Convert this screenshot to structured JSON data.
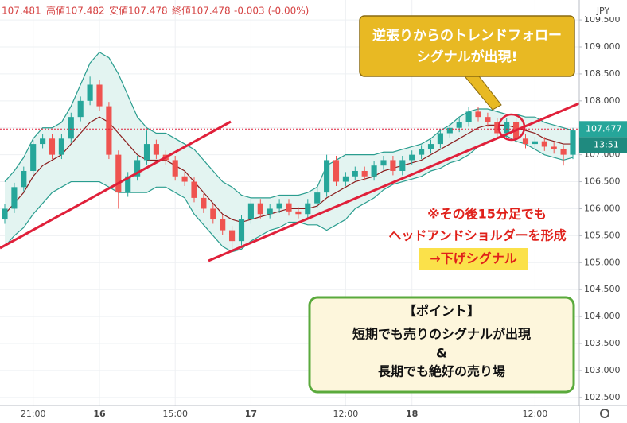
{
  "header": {
    "open": "107.481",
    "high": "高値107.482",
    "low": "安値107.478",
    "close": "終値107.478",
    "change": "-0.003 (-0.00%)"
  },
  "chart_data": {
    "type": "candlestick",
    "currency": "JPY",
    "x": [
      null,
      null,
      null,
      "21:00",
      null,
      null,
      null,
      null,
      null,
      null,
      "16",
      null,
      null,
      null,
      null,
      null,
      null,
      null,
      "15:00",
      null,
      null,
      null,
      null,
      null,
      null,
      null,
      "17",
      null,
      null,
      null,
      null,
      null,
      null,
      null,
      null,
      null,
      "12:00",
      null,
      null,
      null,
      null,
      null,
      null,
      "18",
      null,
      null,
      null,
      null,
      null,
      null,
      null,
      null,
      null,
      null,
      null,
      null,
      "12:00",
      null,
      null,
      null,
      null
    ],
    "open": [
      105.8,
      106.0,
      106.4,
      106.7,
      107.2,
      107.3,
      107.0,
      107.3,
      107.7,
      108.0,
      108.3,
      107.9,
      107.0,
      106.3,
      106.6,
      106.9,
      107.2,
      107.0,
      106.9,
      106.6,
      106.5,
      106.2,
      106.0,
      105.8,
      105.6,
      105.4,
      105.8,
      106.1,
      105.9,
      106.0,
      106.1,
      105.95,
      105.9,
      106.1,
      106.3,
      106.9,
      106.5,
      106.6,
      106.7,
      106.6,
      106.8,
      106.9,
      106.7,
      106.9,
      107.0,
      107.1,
      107.2,
      107.4,
      107.5,
      107.6,
      107.8,
      107.7,
      107.6,
      107.4,
      107.6,
      107.3,
      107.2,
      107.25,
      107.15,
      107.1,
      107.0
    ],
    "high": [
      106.08,
      106.48,
      106.78,
      107.28,
      107.38,
      107.38,
      107.38,
      107.78,
      108.08,
      108.45,
      108.38,
      107.98,
      107.08,
      106.68,
      106.98,
      107.45,
      107.28,
      107.08,
      106.98,
      106.68,
      106.58,
      106.28,
      106.08,
      105.88,
      105.68,
      105.88,
      106.18,
      106.18,
      106.08,
      106.18,
      106.18,
      106.03,
      106.18,
      106.38,
      107.0,
      106.98,
      106.68,
      106.78,
      106.78,
      106.88,
      106.98,
      106.98,
      106.98,
      107.08,
      107.18,
      107.28,
      107.48,
      107.58,
      107.68,
      107.88,
      107.88,
      107.78,
      107.68,
      107.68,
      107.68,
      107.38,
      107.33,
      107.33,
      107.23,
      107.18,
      107.5
    ],
    "low": [
      105.72,
      105.92,
      106.32,
      106.62,
      107.12,
      106.92,
      106.92,
      107.22,
      107.62,
      107.92,
      107.82,
      106.92,
      106.0,
      106.22,
      106.52,
      106.82,
      106.92,
      106.82,
      106.52,
      106.42,
      106.12,
      105.92,
      105.72,
      105.52,
      105.25,
      105.32,
      105.72,
      105.82,
      105.82,
      105.92,
      105.87,
      105.82,
      105.82,
      106.02,
      106.22,
      106.42,
      106.42,
      106.52,
      106.52,
      106.52,
      106.72,
      106.62,
      106.62,
      106.82,
      106.92,
      107.02,
      107.12,
      107.32,
      107.42,
      107.52,
      107.62,
      107.52,
      107.32,
      107.32,
      107.22,
      107.12,
      107.12,
      107.07,
      107.02,
      106.8,
      106.92
    ],
    "close": [
      106.0,
      106.4,
      106.7,
      107.2,
      107.3,
      107.0,
      107.3,
      107.7,
      108.0,
      108.3,
      107.9,
      107.0,
      106.3,
      106.6,
      106.9,
      107.2,
      107.0,
      106.9,
      106.6,
      106.5,
      106.2,
      106.0,
      105.8,
      105.6,
      105.4,
      105.8,
      106.1,
      105.9,
      106.0,
      106.1,
      105.95,
      105.9,
      106.1,
      106.3,
      106.9,
      106.5,
      106.6,
      106.7,
      106.6,
      106.8,
      106.9,
      106.7,
      106.9,
      107.0,
      107.1,
      107.2,
      107.4,
      107.5,
      107.6,
      107.8,
      107.7,
      107.6,
      107.4,
      107.6,
      107.3,
      107.2,
      107.25,
      107.15,
      107.1,
      107.0,
      107.45
    ],
    "up_color": "#26a69a",
    "down_color": "#ef5350",
    "bands": {
      "color": "#2a9d8f",
      "fill": "#e3f4f1",
      "upper": [
        106.5,
        106.7,
        106.95,
        107.3,
        107.5,
        107.5,
        107.6,
        107.9,
        108.3,
        108.7,
        108.9,
        108.8,
        108.5,
        108.1,
        107.7,
        107.5,
        107.4,
        107.4,
        107.3,
        107.2,
        107.1,
        106.9,
        106.7,
        106.5,
        106.4,
        106.25,
        106.2,
        106.2,
        106.2,
        106.25,
        106.25,
        106.25,
        106.3,
        106.4,
        106.8,
        106.9,
        107.0,
        107.0,
        107.0,
        107.0,
        107.05,
        107.05,
        107.1,
        107.15,
        107.2,
        107.3,
        107.45,
        107.55,
        107.7,
        107.8,
        107.85,
        107.85,
        107.8,
        107.75,
        107.75,
        107.7,
        107.7,
        107.6,
        107.55,
        107.5,
        107.45
      ],
      "middle": [
        105.9,
        106.1,
        106.3,
        106.6,
        106.8,
        106.9,
        107.0,
        107.2,
        107.4,
        107.6,
        107.7,
        107.6,
        107.4,
        107.2,
        107.0,
        106.9,
        106.9,
        106.9,
        106.8,
        106.7,
        106.5,
        106.3,
        106.1,
        105.9,
        105.8,
        105.75,
        105.8,
        105.85,
        105.9,
        105.95,
        106.0,
        106.0,
        106.0,
        106.05,
        106.2,
        106.3,
        106.4,
        106.5,
        106.55,
        106.6,
        106.7,
        106.75,
        106.8,
        106.85,
        106.9,
        107.0,
        107.1,
        107.2,
        107.3,
        107.4,
        107.5,
        107.55,
        107.55,
        107.55,
        107.5,
        107.45,
        107.4,
        107.3,
        107.25,
        107.2,
        107.2
      ],
      "lower": [
        105.3,
        105.5,
        105.65,
        105.9,
        106.1,
        106.3,
        106.4,
        106.5,
        106.5,
        106.5,
        106.5,
        106.4,
        106.3,
        106.3,
        106.3,
        106.3,
        106.4,
        106.4,
        106.3,
        106.2,
        105.9,
        105.7,
        105.5,
        105.3,
        105.2,
        105.25,
        105.4,
        105.5,
        105.6,
        105.65,
        105.75,
        105.75,
        105.7,
        105.7,
        105.6,
        105.7,
        105.8,
        106.0,
        106.1,
        106.2,
        106.35,
        106.45,
        106.5,
        106.55,
        106.6,
        106.7,
        106.75,
        106.85,
        106.9,
        107.0,
        107.15,
        107.25,
        107.3,
        107.35,
        107.25,
        107.2,
        107.1,
        107.0,
        106.95,
        106.9,
        106.95
      ],
      "middle_color": "#8b1e1e"
    },
    "ylim": [
      102.35,
      109.87
    ],
    "yticks": [
      {
        "value": 102.5,
        "label": "102.500"
      },
      {
        "value": 103,
        "label": "103.000"
      },
      {
        "value": 103.5,
        "label": "103.500"
      },
      {
        "value": 104,
        "label": "104.000"
      },
      {
        "value": 104.5,
        "label": "104.500"
      },
      {
        "value": 105,
        "label": "105.000"
      },
      {
        "value": 105.5,
        "label": "105.500"
      },
      {
        "value": 106,
        "label": "106.000"
      },
      {
        "value": 106.5,
        "label": "106.500"
      },
      {
        "value": 107,
        "label": "107.000"
      },
      {
        "value": 107.5,
        "label": "107.500"
      },
      {
        "value": 108,
        "label": "108.000"
      },
      {
        "value": 108.5,
        "label": "108.500"
      },
      {
        "value": 109,
        "label": "109.000"
      },
      {
        "value": 109.5,
        "label": "109.500"
      }
    ],
    "grid": true,
    "last_price": {
      "value": 107.477,
      "label": "107.477"
    },
    "countdown": "13:51"
  },
  "annotations": {
    "signal_box": [
      "逆張りからのトレンドフォロー",
      "シグナルが出現!"
    ],
    "note": [
      "※その後15分足でも",
      "ヘッドアンドショルダーを形成",
      "→下げシグナル"
    ],
    "point_box": [
      "【ポイント】",
      "短期でも売りのシグナルが出現",
      "&",
      "長期でも絶好の売り場"
    ]
  }
}
